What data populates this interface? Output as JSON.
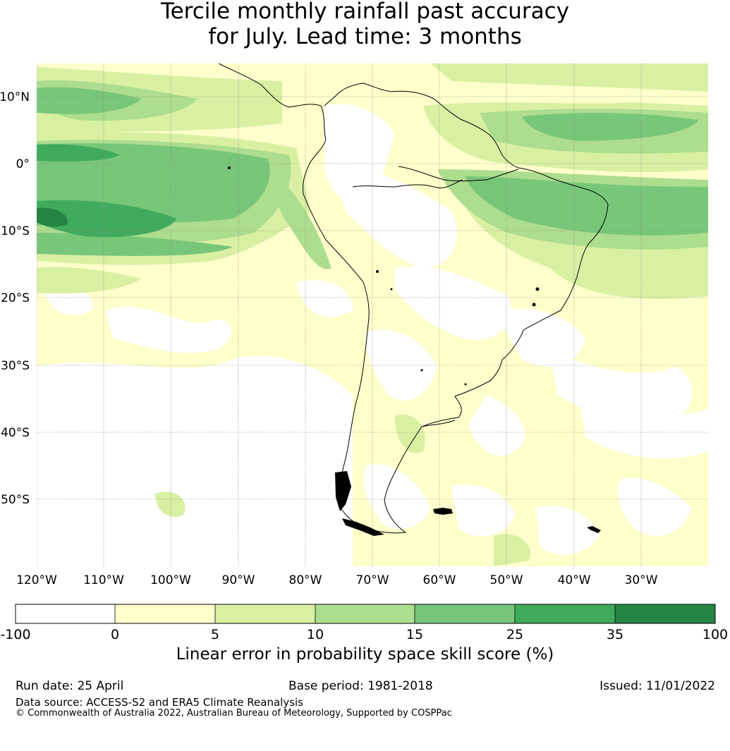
{
  "title_line1": "Tercile monthly rainfall past accuracy",
  "title_line2": "for July. Lead time: 3 months",
  "map": {
    "lat_labels": [
      "10°N",
      "0°",
      "10°S",
      "20°S",
      "30°S",
      "40°S",
      "50°S"
    ],
    "lon_labels": [
      "120°W",
      "110°W",
      "100°W",
      "90°W",
      "80°W",
      "70°W",
      "60°W",
      "50°W",
      "40°W",
      "30°W"
    ]
  },
  "colorbar": {
    "title": "Linear error in probability space skill score (%)",
    "bounds": [
      "-100",
      "0",
      "5",
      "10",
      "15",
      "25",
      "35",
      "100"
    ],
    "colors": [
      "#ffffff",
      "#ffffcc",
      "#d9f0a3",
      "#addd8e",
      "#78c679",
      "#41ab5d",
      "#238443"
    ]
  },
  "footer": {
    "run_date": "Run date: 25 April",
    "base_period": "Base period: 1981-2018",
    "issued": "Issued: 11/01/2022",
    "data_source": "Data source: ACCESS-S2 and ERA5 Climate Reanalysis",
    "copyright": "© Commonwealth of Australia 2022, Australian Bureau of Meteorology, Supported by COSPPac"
  }
}
